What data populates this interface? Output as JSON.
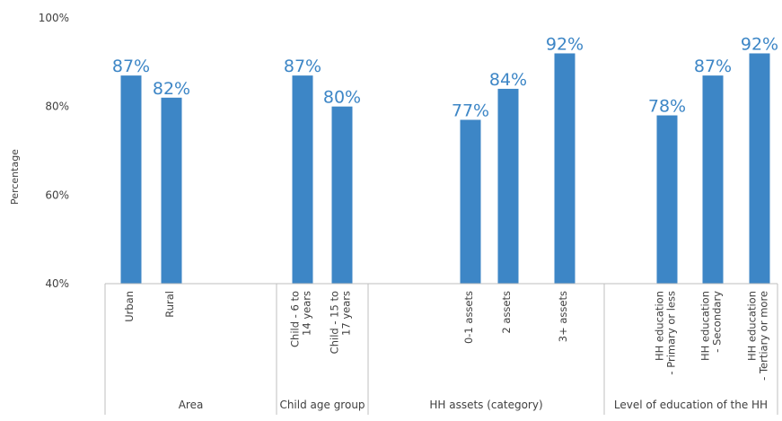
{
  "chart_data": {
    "type": "bar",
    "ylabel": "Percentage",
    "ylim": [
      40,
      100
    ],
    "yticks": [
      "40%",
      "60%",
      "80%",
      "100%"
    ],
    "grid": false,
    "bar_color": "#3d86c6",
    "groups": [
      {
        "name": "Area",
        "bars": [
          {
            "category": "Urban",
            "value": 87,
            "label": "87%"
          },
          {
            "category": "Rural",
            "value": 82,
            "label": "82%"
          }
        ]
      },
      {
        "name": "Child age group",
        "bars": [
          {
            "category": "Child - 6 to 14 years",
            "value": 87,
            "label": "87%"
          },
          {
            "category": "Child - 15 to 17 years",
            "value": 80,
            "label": "80%"
          }
        ]
      },
      {
        "name": "HH assets (category)",
        "bars": [
          {
            "category": "0-1 assets",
            "value": 77,
            "label": "77%"
          },
          {
            "category": "2 assets",
            "value": 84,
            "label": "84%"
          },
          {
            "category": "3+ assets",
            "value": 92,
            "label": "92%"
          }
        ]
      },
      {
        "name": "Level of education of the HH",
        "bars": [
          {
            "category": "HH education - Primary or less",
            "value": 78,
            "label": "78%"
          },
          {
            "category": "HH education - Secondary",
            "value": 87,
            "label": "87%"
          },
          {
            "category": "HH education - Tertiary or more",
            "value": 92,
            "label": "92%"
          }
        ]
      }
    ]
  }
}
